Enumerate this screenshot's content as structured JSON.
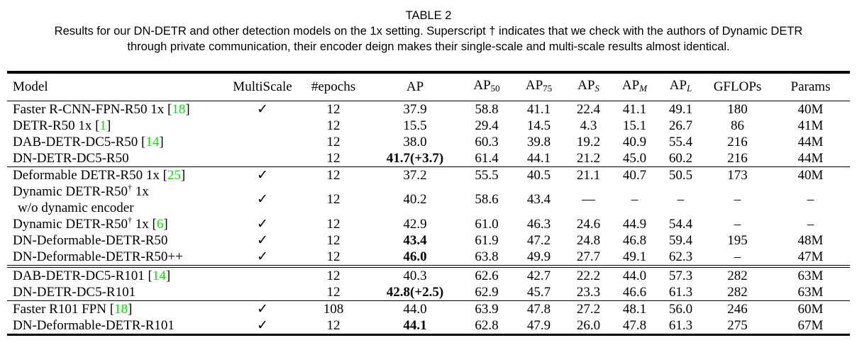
{
  "caption": {
    "title": "TABLE 2",
    "line1": "Results for our DN-DETR and other detection models on the 1x setting. Superscript † indicates that we check with the authors of Dynamic DETR",
    "line2": "through private communication, their encoder deign makes their single-scale and multi-scale results almost identical."
  },
  "colors": {
    "cite_green": "#00e400",
    "text": "#000000",
    "background": "#ffffff"
  },
  "table": {
    "checkmark": "✓",
    "headers": [
      {
        "label": "Model"
      },
      {
        "label": "MultiScale"
      },
      {
        "label": "#epochs"
      },
      {
        "label": "AP"
      },
      {
        "label": "AP",
        "sub": "50"
      },
      {
        "label": "AP",
        "sub": "75"
      },
      {
        "label": "AP",
        "sub": "S"
      },
      {
        "label": "AP",
        "sub": "M"
      },
      {
        "label": "AP",
        "sub": "L"
      },
      {
        "label": "GFLOPs"
      },
      {
        "label": "Params"
      }
    ],
    "groups": [
      {
        "rows": [
          {
            "model": {
              "pre": "Faster R-CNN-FPN-R50 1x ",
              "cite": "18"
            },
            "multiscale": true,
            "cells": [
              "12",
              "37.9",
              "58.8",
              "41.1",
              "22.4",
              "41.1",
              "49.1",
              "180",
              "40M"
            ]
          },
          {
            "model": {
              "pre": "DETR-R50 1x ",
              "cite": "1"
            },
            "multiscale": false,
            "cells": [
              "12",
              "15.5",
              "29.4",
              "14.5",
              "4.3",
              "15.1",
              "26.7",
              "86",
              "41M"
            ]
          },
          {
            "model": {
              "pre": "DAB-DETR-DC5-R50 ",
              "cite": "14"
            },
            "multiscale": false,
            "cells": [
              "12",
              "38.0",
              "60.3",
              "39.8",
              "19.2",
              "40.9",
              "55.4",
              "216",
              "44M"
            ]
          },
          {
            "model": {
              "pre": "DN-DETR-DC5-R50"
            },
            "multiscale": false,
            "ap_bold": true,
            "cells": [
              "12",
              "41.7(+3.7)",
              "61.4",
              "44.1",
              "21.2",
              "45.0",
              "60.2",
              "216",
              "44M"
            ]
          }
        ]
      },
      {
        "rows": [
          {
            "model": {
              "pre": "Deformable DETR-R50 1x ",
              "cite": "25"
            },
            "multiscale": true,
            "cells": [
              "12",
              "37.2",
              "55.5",
              "40.5",
              "21.1",
              "40.7",
              "50.5",
              "173",
              "40M"
            ]
          },
          {
            "model": {
              "pre": "Dynamic DETR-R50",
              "sup": "†",
              "post": " 1x",
              "line2": "w/o dynamic encoder"
            },
            "multiscale": true,
            "cells": [
              "12",
              "40.2",
              "58.6",
              "43.4",
              "––",
              "–",
              "–",
              "–",
              "–"
            ]
          },
          {
            "model": {
              "pre": "Dynamic DETR-R50",
              "sup": "†",
              "post": " 1x ",
              "cite": "6"
            },
            "multiscale": true,
            "cells": [
              "12",
              "42.9",
              "61.0",
              "46.3",
              "24.6",
              "44.9",
              "54.4",
              "–",
              "–"
            ]
          },
          {
            "model": {
              "pre": "DN-Deformable-DETR-R50"
            },
            "multiscale": true,
            "ap_bold": true,
            "cells": [
              "12",
              "43.4",
              "61.9",
              "47.2",
              "24.8",
              "46.8",
              "59.4",
              "195",
              "48M"
            ]
          },
          {
            "model": {
              "pre": "DN-Deformable-DETR-R50++"
            },
            "multiscale": true,
            "ap_bold": true,
            "cells": [
              "12",
              "46.0",
              "63.8",
              "49.9",
              "27.7",
              "49.1",
              "62.3",
              "–",
              "47M"
            ]
          }
        ]
      },
      {
        "rows": [
          {
            "model": {
              "pre": "DAB-DETR-DC5-R101 ",
              "cite": "14"
            },
            "multiscale": false,
            "cells": [
              "12",
              "40.3",
              "62.6",
              "42.7",
              "22.2",
              "44.0",
              "57.3",
              "282",
              "63M"
            ]
          },
          {
            "model": {
              "pre": "DN-DETR-DC5-R101"
            },
            "multiscale": false,
            "ap_bold": true,
            "cells": [
              "12",
              "42.8(+2.5)",
              "62.9",
              "45.7",
              "23.3",
              "46.6",
              "61.3",
              "282",
              "63M"
            ]
          }
        ]
      },
      {
        "rows": [
          {
            "model": {
              "pre": "Faster R101 FPN ",
              "cite": "18"
            },
            "multiscale": true,
            "cells": [
              "108",
              "44.0",
              "63.9",
              "47.8",
              "27.2",
              "48.1",
              "56.0",
              "246",
              "60M"
            ]
          },
          {
            "model": {
              "pre": "DN-Deformable-DETR-R101"
            },
            "multiscale": true,
            "ap_bold": true,
            "cells": [
              "12",
              "44.1",
              "62.8",
              "47.9",
              "26.0",
              "47.8",
              "61.3",
              "275",
              "67M"
            ]
          }
        ]
      }
    ]
  }
}
